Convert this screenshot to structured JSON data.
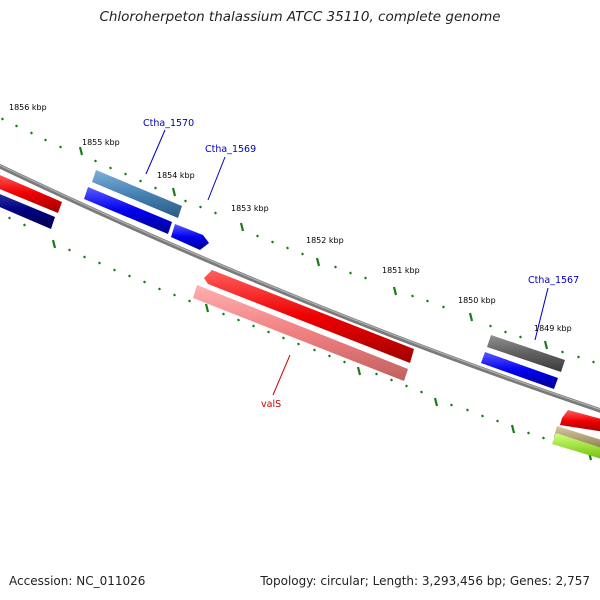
{
  "title": "Chloroherpeton thalassium ATCC 35110, complete genome",
  "footer": {
    "accession": "Accession: NC_011026",
    "summary": "Topology: circular; Length: 3,293,456 bp; Genes: 2,757"
  },
  "ticks": [
    "1856 kbp",
    "1855 kbp",
    "1854 kbp",
    "1853 kbp",
    "1852 kbp",
    "1851 kbp",
    "1850 kbp",
    "1849 kbp"
  ],
  "gene_labels": [
    {
      "text": "Ctha_1570",
      "color": "#0000c0"
    },
    {
      "text": "Ctha_1569",
      "color": "#0000c0"
    },
    {
      "text": "Ctha_1567",
      "color": "#0000c0"
    },
    {
      "text": "valS",
      "color": "#cc0000"
    }
  ],
  "colors": {
    "backbone": "#808080",
    "tick": "#1a7a1a",
    "cds_forward": "#0000ee",
    "cds_reverse": "#ee0000",
    "rna_reverse": "#f08080",
    "gene_forward": "#4682b4",
    "gene_dark": "#000080",
    "gene_gray": "#606060",
    "gene_olive": "#b0a070",
    "gene_lime": "#a0f020"
  }
}
